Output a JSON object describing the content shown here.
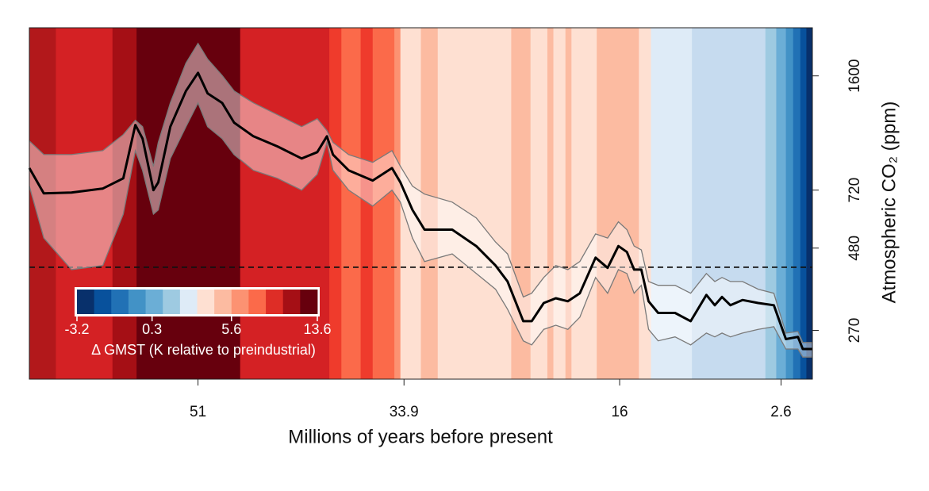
{
  "chart_data": {
    "type": "line",
    "x_label": "Millions of years before present",
    "y_label": "Atmospheric CO₂ (ppm)",
    "xlim": [
      65,
      0
    ],
    "xticks": [
      51,
      33.9,
      16,
      2.6
    ],
    "ylim": [
      192,
      2240
    ],
    "yticks": [
      270,
      480,
      720,
      1600
    ],
    "log_y": true,
    "reference_value": 420,
    "color": "#000000",
    "band_color": "rgba(255,255,255,0.45)",
    "band_edge_color": "#7a7a7a",
    "x": [
      65.0,
      63.8,
      61.5,
      58.9,
      57.2,
      56.2,
      55.6,
      54.7,
      54.3,
      53.3,
      52.0,
      51.0,
      50.2,
      49.0,
      48.0,
      46.4,
      44.4,
      42.4,
      41.1,
      40.3,
      39.8,
      38.5,
      36.5,
      34.9,
      34.2,
      33.2,
      32.2,
      29.9,
      27.9,
      26.3,
      25.3,
      24.0,
      23.3,
      22.3,
      21.3,
      20.3,
      19.3,
      18.0,
      17.0,
      16.1,
      15.4,
      14.8,
      14.2,
      13.6,
      12.8,
      11.4,
      10.1,
      8.8,
      8.1,
      7.5,
      6.8,
      5.8,
      4.5,
      3.2,
      2.2,
      1.2,
      0.8,
      0.0
    ],
    "values": [
      840,
      704,
      708,
      728,
      782,
      1135,
      1032,
      720,
      760,
      1122,
      1440,
      1635,
      1416,
      1325,
      1154,
      1049,
      977,
      898,
      939,
      1049,
      923,
      827,
      770,
      840,
      760,
      627,
      546,
      546,
      487,
      425,
      380,
      288,
      288,
      327,
      338,
      331,
      350,
      449,
      418,
      487,
      467,
      413,
      413,
      331,
      305,
      305,
      288,
      346,
      322,
      341,
      322,
      334,
      327,
      322,
      254,
      258,
      237,
      237
    ],
    "upper": [
      1015,
      923,
      923,
      949,
      1061,
      1173,
      1122,
      850,
      1005,
      1325,
      1749,
      2008,
      1798,
      1604,
      1440,
      1325,
      1219,
      1122,
      1186,
      1091,
      1005,
      923,
      874,
      949,
      850,
      740,
      700,
      662,
      593,
      501,
      461,
      341,
      350,
      391,
      425,
      413,
      437,
      530,
      515,
      577,
      546,
      487,
      474,
      380,
      370,
      370,
      350,
      402,
      380,
      391,
      380,
      380,
      360,
      350,
      265,
      268,
      248,
      248
    ],
    "lower": [
      740,
      515,
      413,
      425,
      609,
      949,
      827,
      609,
      627,
      898,
      1122,
      1325,
      1122,
      1032,
      923,
      827,
      782,
      720,
      804,
      1005,
      827,
      720,
      644,
      720,
      662,
      515,
      437,
      461,
      402,
      360,
      313,
      251,
      244,
      272,
      280,
      272,
      296,
      391,
      350,
      413,
      402,
      350,
      370,
      272,
      251,
      258,
      244,
      265,
      258,
      265,
      258,
      265,
      272,
      277,
      237,
      237,
      224,
      224
    ],
    "stripes": {
      "edges": [
        65,
        62.8,
        58.1,
        56.1,
        47.5,
        40.1,
        39.1,
        37.5,
        36.5,
        34.7,
        34.2,
        32.5,
        31.1,
        25.0,
        23.4,
        22.0,
        21.5,
        20.5,
        20.0,
        17.9,
        14.4,
        13.4,
        10.0,
        3.9,
        3.0,
        2.2,
        1.6,
        1.0,
        0.5,
        0
      ],
      "colors": [
        "#b2181b",
        "#d42124",
        "#a50f15",
        "#67000d",
        "#d42124",
        "#ef3b2c",
        "#fb6a4a",
        "#ef3b2c",
        "#fb6a4a",
        "#fc9272",
        "#fee0d2",
        "#fcbba1",
        "#fee0d2",
        "#fcbba1",
        "#fee0d2",
        "#fcbba1",
        "#fee0d2",
        "#fcbba1",
        "#fee0d2",
        "#fcbba1",
        "#fee0d2",
        "#deebf7",
        "#c6dbef",
        "#9ecae1",
        "#6baed6",
        "#4292c6",
        "#2171b5",
        "#08519c",
        "#08306b"
      ]
    },
    "colorbar": {
      "label": "Δ GMST (K relative to preindustrial)",
      "colors": [
        "#08306b",
        "#08519c",
        "#2171b5",
        "#4292c6",
        "#6baed6",
        "#9ecae1",
        "#deebf7",
        "#fee0d2",
        "#fcbba1",
        "#fc9272",
        "#fb6a4a",
        "#de2d26",
        "#a50f15",
        "#67000d"
      ],
      "breaks": [
        -3.2,
        -2.4,
        -1.6,
        -0.8,
        0.0,
        0.8,
        1.8,
        3.0,
        4.3,
        5.6,
        7.2,
        8.8,
        10.4,
        12.0,
        13.6
      ],
      "ticks": [
        -3.2,
        0.3,
        5.6,
        13.6
      ]
    }
  }
}
